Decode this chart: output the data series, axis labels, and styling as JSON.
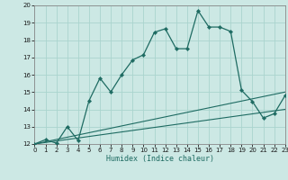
{
  "title": "",
  "xlabel": "Humidex (Indice chaleur)",
  "xlim": [
    0,
    23
  ],
  "ylim": [
    12,
    20
  ],
  "xticks": [
    0,
    1,
    2,
    3,
    4,
    5,
    6,
    7,
    8,
    9,
    10,
    11,
    12,
    13,
    14,
    15,
    16,
    17,
    18,
    19,
    20,
    21,
    22,
    23
  ],
  "yticks": [
    12,
    13,
    14,
    15,
    16,
    17,
    18,
    19,
    20
  ],
  "background_color": "#cce8e4",
  "grid_color": "#aad4ce",
  "line_color": "#1e6b62",
  "main_x": [
    0,
    1,
    2,
    3,
    4,
    5,
    6,
    7,
    8,
    9,
    10,
    11,
    12,
    13,
    14,
    15,
    16,
    17,
    18,
    19,
    20,
    21,
    22,
    23
  ],
  "main_y": [
    12.0,
    12.25,
    12.05,
    13.0,
    12.2,
    14.5,
    15.8,
    15.0,
    16.0,
    16.85,
    17.15,
    18.45,
    18.65,
    17.5,
    17.5,
    19.7,
    18.75,
    18.75,
    18.5,
    15.1,
    14.45,
    13.5,
    13.75,
    14.8
  ],
  "line1_x": [
    0,
    23
  ],
  "line1_y": [
    12.0,
    14.0
  ],
  "line2_x": [
    0,
    23
  ],
  "line2_y": [
    12.0,
    15.0
  ]
}
